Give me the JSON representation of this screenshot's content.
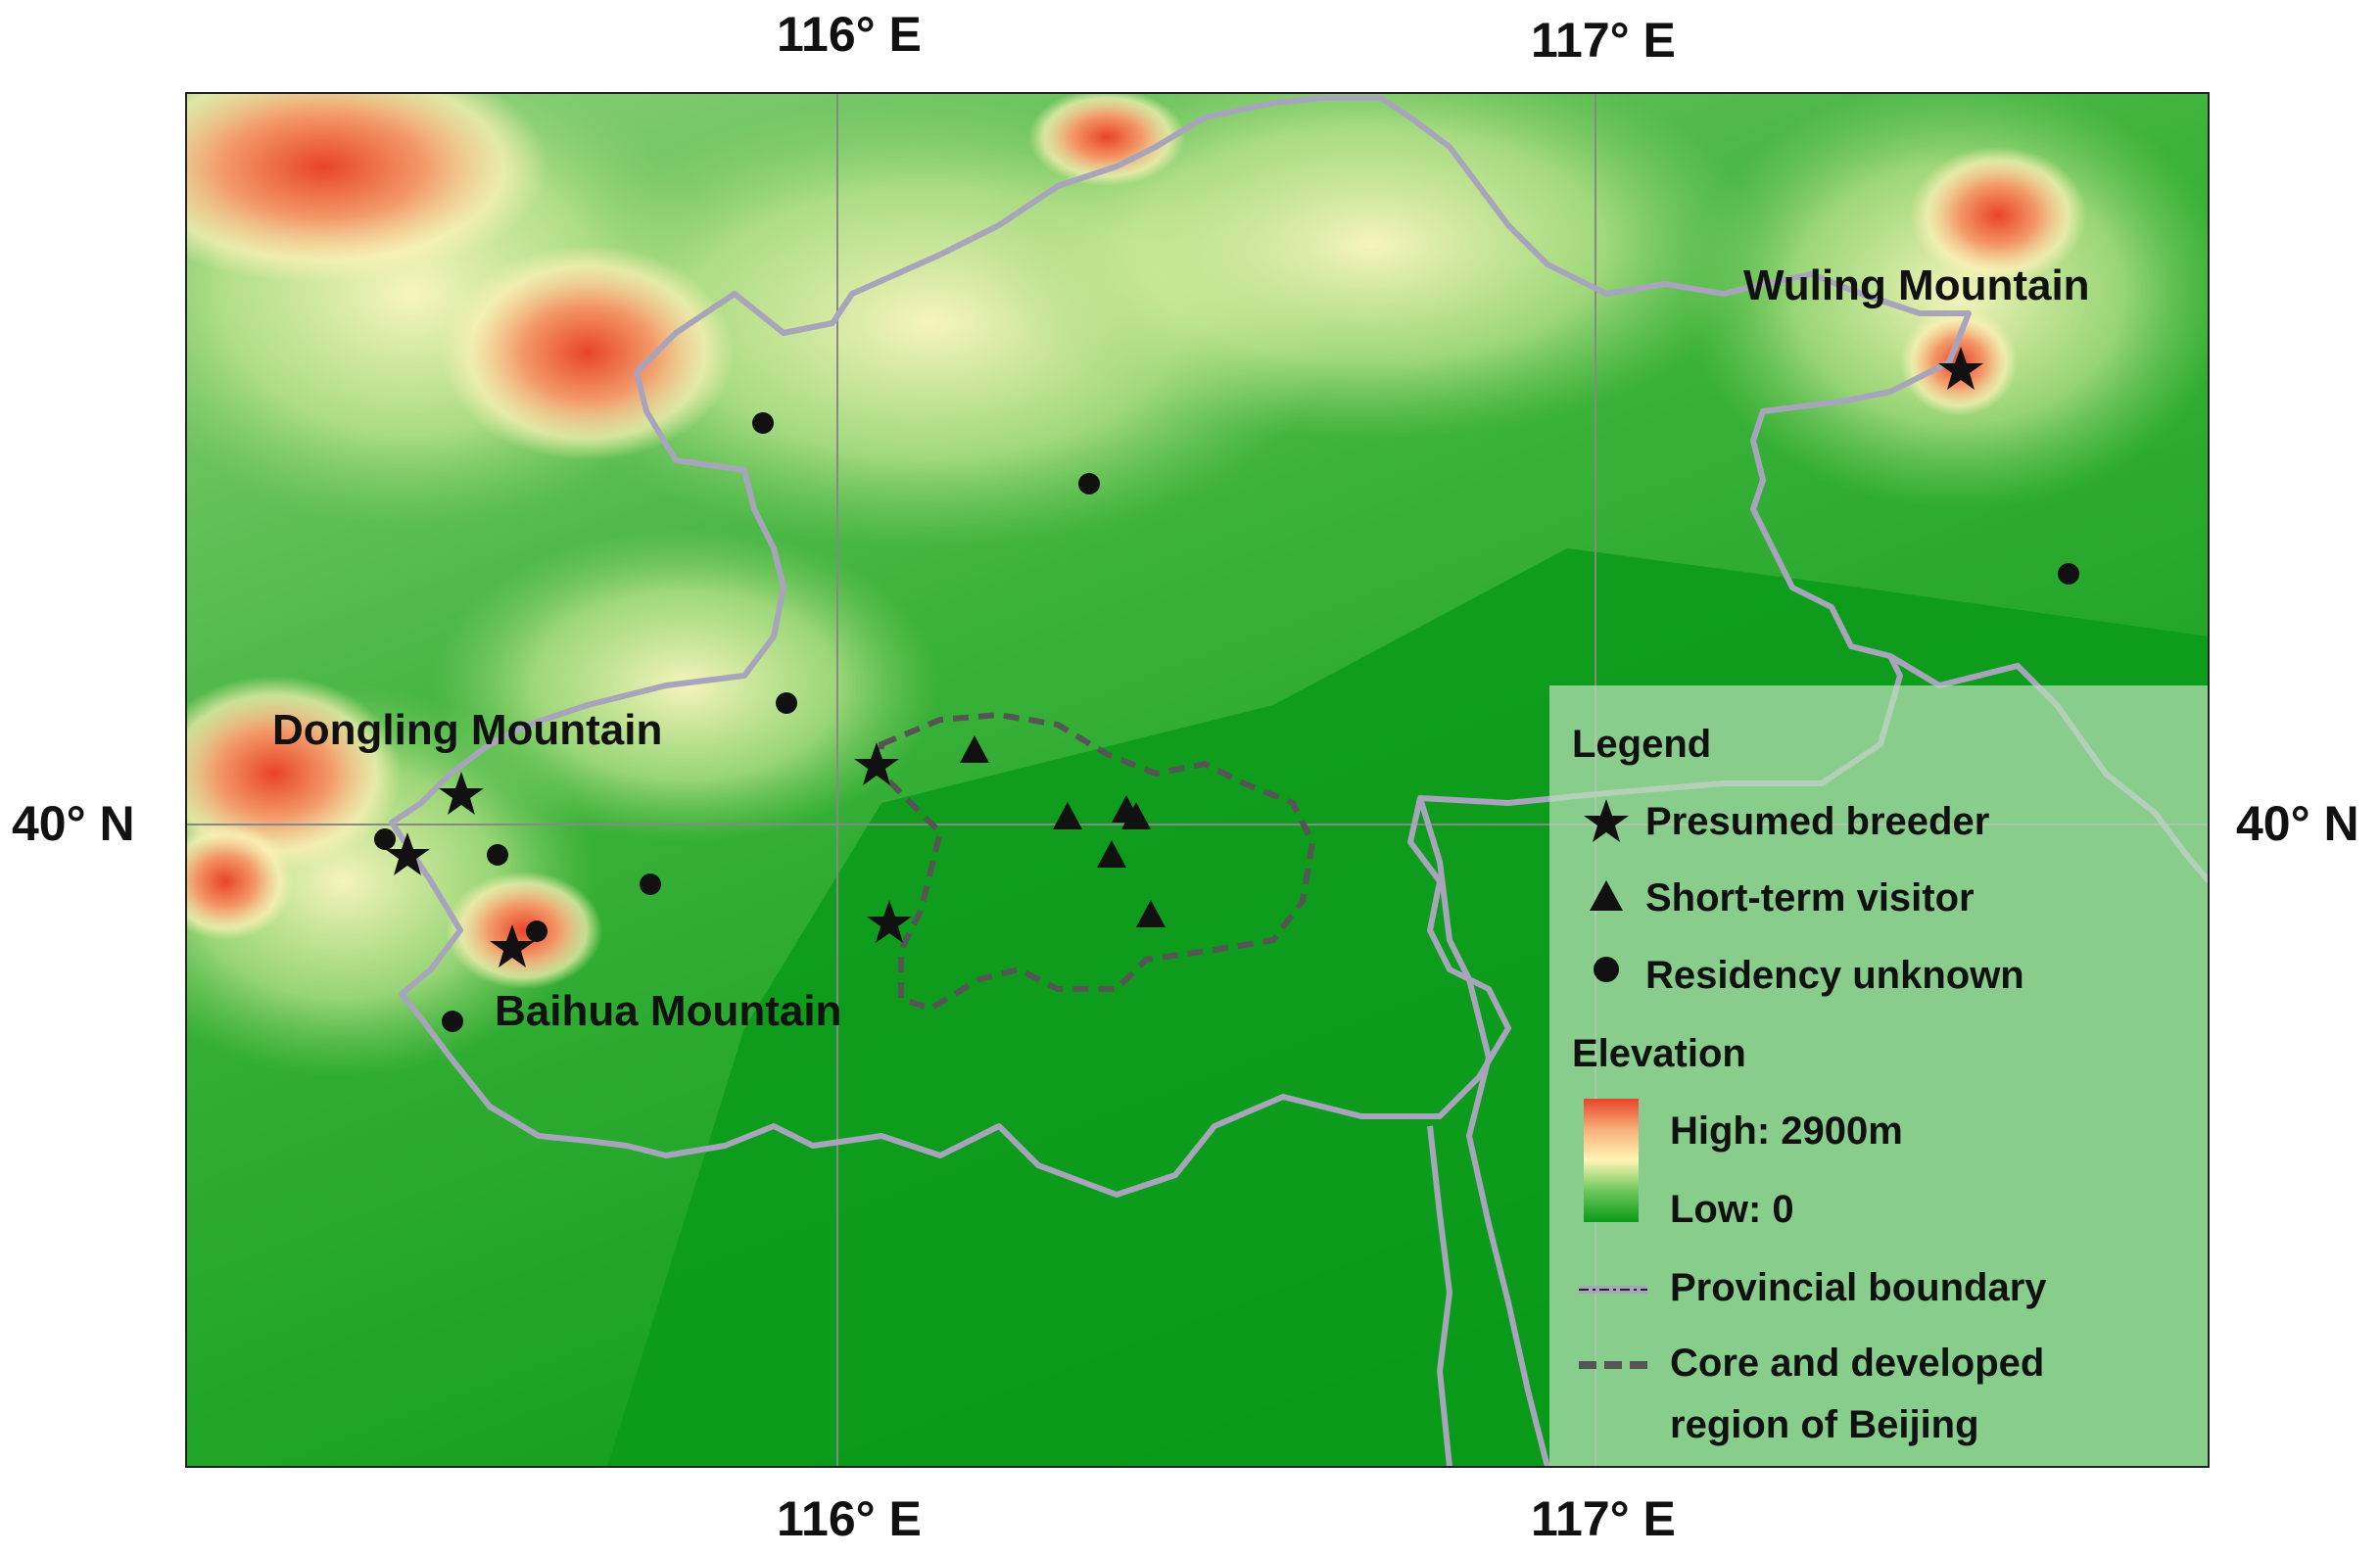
{
  "axis_labels": {
    "lon_top": [
      "116° E",
      "117° E"
    ],
    "lon_bottom": [
      "116° E",
      "117° E"
    ],
    "lat_left": "40° N",
    "lat_right": "40° N"
  },
  "place_labels": {
    "wuling": "Wuling Mountain",
    "dongling": "Dongling Mountain",
    "baihua": "Baihua Mountain"
  },
  "legend": {
    "title": "Legend",
    "presumed_breeder": "Presumed breeder",
    "short_term_visitor": "Short-term visitor",
    "residency_unknown": "Residency unknown",
    "elevation_title": "Elevation",
    "elevation_high": "High: 2900m",
    "elevation_low": "Low: 0",
    "provincial_boundary": "Provincial boundary",
    "core_region_line1": "Core and developed",
    "core_region_line2": "region of Beijing"
  },
  "colors": {
    "elevation_high": "#e8442a",
    "elevation_mid": "#fff5b4",
    "elevation_low": "#0a9a1a",
    "boundary": "#a8a4bc",
    "core_region": "#555555"
  }
}
